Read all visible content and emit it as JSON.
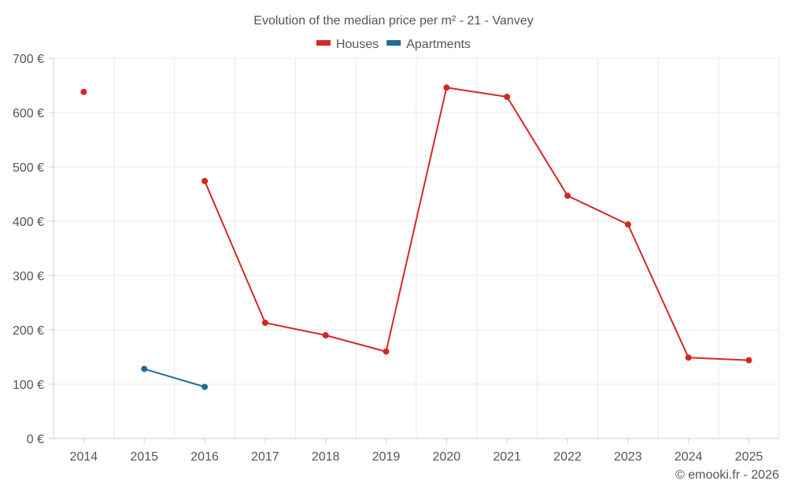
{
  "chart_data": {
    "type": "line",
    "title": "Evolution of the median price per m² - 21 - Vanvey",
    "categories": [
      "2014",
      "2015",
      "2016",
      "2017",
      "2018",
      "2019",
      "2020",
      "2021",
      "2022",
      "2023",
      "2024",
      "2025"
    ],
    "ylim": [
      0,
      700
    ],
    "yticks": [
      0,
      100,
      200,
      300,
      400,
      500,
      600,
      700
    ],
    "y_tick_suffix": " €",
    "grid": true,
    "legend_position": "top-center",
    "series": [
      {
        "name": "Houses",
        "color": "#d62728",
        "values": [
          638,
          null,
          474,
          213,
          190,
          160,
          646,
          629,
          447,
          394,
          149,
          144
        ]
      },
      {
        "name": "Apartments",
        "color": "#1f6b9a",
        "values": [
          null,
          128,
          95,
          null,
          null,
          null,
          null,
          null,
          null,
          null,
          null,
          null
        ]
      }
    ]
  },
  "credit": "© emooki.fr - 2026"
}
